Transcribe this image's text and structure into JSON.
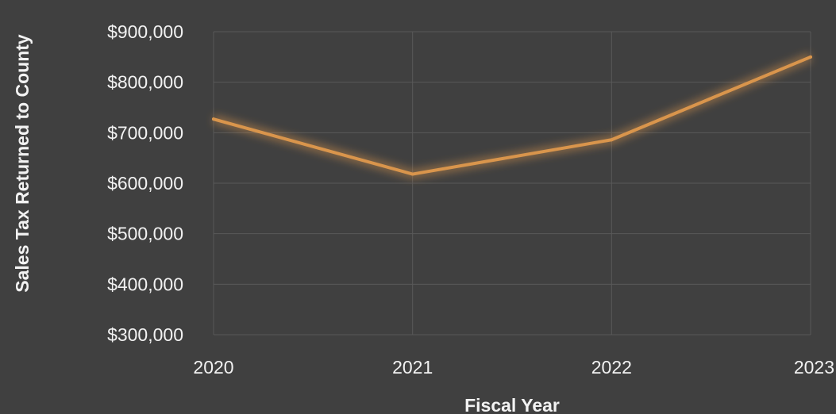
{
  "chart_data": {
    "type": "line",
    "x": [
      "2020",
      "2021",
      "2022",
      "2023"
    ],
    "series": [
      {
        "values": [
          727000,
          618000,
          686000,
          850000
        ],
        "color": "#d9954c"
      }
    ],
    "xlabel": "Fiscal Year",
    "ylabel": "Sales Tax Returned to County",
    "ylim": [
      300000,
      900000
    ],
    "yticks": [
      "$300,000",
      "$400,000",
      "$500,000",
      "$600,000",
      "$700,000",
      "$800,000",
      "$900,000"
    ],
    "grid": true,
    "legend": "none"
  },
  "colors": {
    "background": "#404040",
    "grid": "#595959",
    "text": "#f2f2f2",
    "line": "#d9954c"
  }
}
